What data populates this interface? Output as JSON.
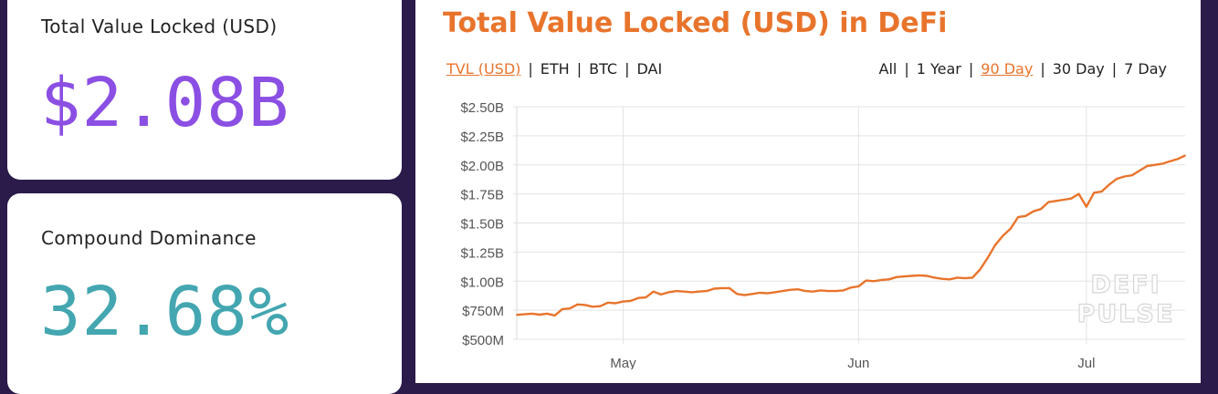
{
  "accent_color": "#e8742c",
  "cards": [
    {
      "label": "Total Value Locked (USD)",
      "value": "$2.08B",
      "color": "#8b4fe3"
    },
    {
      "label": "Compound Dominance",
      "value": "32.68%",
      "color": "#43a6b0"
    }
  ],
  "chart_panel": {
    "title": "Total Value Locked (USD) in DeFi",
    "metric_tabs": [
      {
        "label": "TVL (USD)",
        "active": true
      },
      {
        "label": "ETH",
        "active": false
      },
      {
        "label": "BTC",
        "active": false
      },
      {
        "label": "DAI",
        "active": false
      }
    ],
    "range_tabs": [
      {
        "label": "All",
        "active": false
      },
      {
        "label": "1 Year",
        "active": false
      },
      {
        "label": "90 Day",
        "active": true
      },
      {
        "label": "30 Day",
        "active": false
      },
      {
        "label": "7 Day",
        "active": false
      }
    ],
    "watermark": [
      "DEFI",
      "PULSE"
    ]
  },
  "chart_data": {
    "type": "line",
    "title": "",
    "xlabel": "",
    "ylabel": "",
    "ylim": [
      500,
      2500
    ],
    "y_ticks": [
      500,
      750,
      1000,
      1250,
      1500,
      1750,
      2000,
      2250,
      2500
    ],
    "y_tick_labels": [
      "$500M",
      "$750M",
      "$1.00B",
      "$1.25B",
      "$1.50B",
      "$1.75B",
      "$2.00B",
      "$2.25B",
      "$2.50B"
    ],
    "x_ticks": [
      {
        "label": "May",
        "day": 14
      },
      {
        "label": "Jun",
        "day": 45
      },
      {
        "label": "Jul",
        "day": 75
      }
    ],
    "grid": true,
    "series": [
      {
        "color": "#e8742c",
        "x": [
          0,
          1,
          2,
          3,
          4,
          5,
          6,
          7,
          8,
          9,
          10,
          11,
          12,
          13,
          14,
          15,
          16,
          17,
          18,
          19,
          20,
          21,
          22,
          23,
          24,
          25,
          26,
          27,
          28,
          29,
          30,
          31,
          32,
          33,
          34,
          35,
          36,
          37,
          38,
          39,
          40,
          41,
          42,
          43,
          44,
          45,
          46,
          47,
          48,
          49,
          50,
          51,
          52,
          53,
          54,
          55,
          56,
          57,
          58,
          59,
          60,
          61,
          62,
          63,
          64,
          65,
          66,
          67,
          68,
          69,
          70,
          71,
          72,
          73,
          74,
          75,
          76,
          77,
          78,
          79,
          80,
          81,
          82,
          83,
          84,
          85,
          86,
          87,
          88
        ],
        "values": [
          710,
          715,
          720,
          712,
          720,
          705,
          760,
          765,
          800,
          795,
          780,
          785,
          815,
          810,
          825,
          830,
          855,
          860,
          910,
          885,
          905,
          915,
          910,
          905,
          910,
          915,
          935,
          940,
          940,
          890,
          880,
          890,
          900,
          895,
          905,
          915,
          925,
          930,
          915,
          910,
          920,
          915,
          915,
          920,
          945,
          955,
          1005,
          1000,
          1010,
          1015,
          1035,
          1040,
          1045,
          1050,
          1045,
          1030,
          1020,
          1015,
          1030,
          1025,
          1030,
          1100,
          1200,
          1310,
          1390,
          1450,
          1550,
          1560,
          1600,
          1620,
          1680,
          1690,
          1700,
          1710,
          1750,
          1640,
          1760,
          1770,
          1830,
          1880,
          1900,
          1910,
          1950,
          1990,
          2000,
          2010,
          2030,
          2050,
          2080
        ]
      }
    ]
  }
}
